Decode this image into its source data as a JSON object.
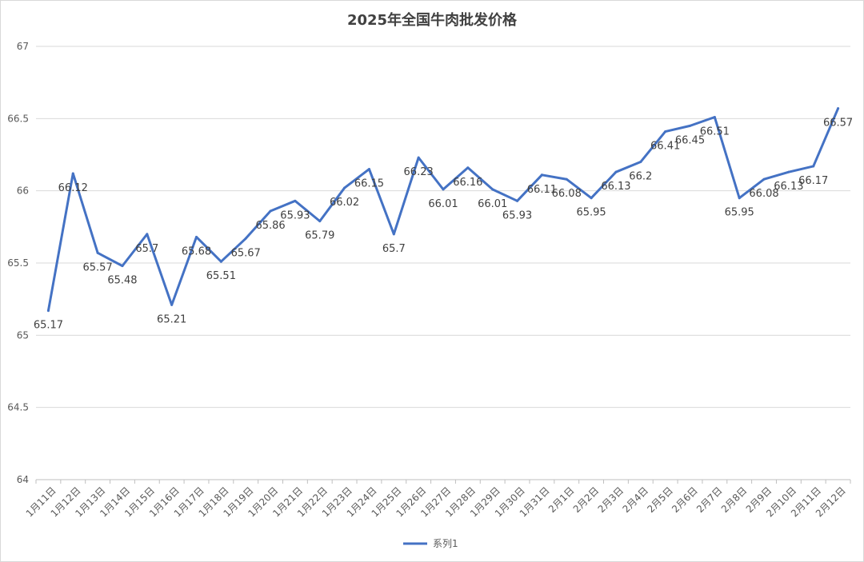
{
  "chart_data": {
    "type": "line",
    "title": "2025年全国牛肉批发价格",
    "xlabel": "",
    "ylabel": "",
    "ylim": [
      64,
      67
    ],
    "yticks": [
      64,
      64.5,
      65,
      65.5,
      66,
      66.5,
      67
    ],
    "grid": true,
    "legend_position": "bottom",
    "color": "#4472C4",
    "categories": [
      "1月11日",
      "1月12日",
      "1月13日",
      "1月14日",
      "1月15日",
      "1月16日",
      "1月17日",
      "1月18日",
      "1月19日",
      "1月20日",
      "1月21日",
      "1月22日",
      "1月23日",
      "1月24日",
      "1月25日",
      "1月26日",
      "1月27日",
      "1月28日",
      "1月29日",
      "1月30日",
      "1月31日",
      "2月1日",
      "2月2日",
      "2月3日",
      "2月4日",
      "2月5日",
      "2月6日",
      "2月7日",
      "2月8日",
      "2月9日",
      "2月10日",
      "2月11日",
      "2月12日"
    ],
    "series": [
      {
        "name": "系列1",
        "values": [
          65.17,
          66.12,
          65.57,
          65.48,
          65.7,
          65.21,
          65.68,
          65.51,
          65.67,
          65.86,
          65.93,
          65.79,
          66.02,
          66.15,
          65.7,
          66.23,
          66.01,
          66.16,
          66.01,
          65.93,
          66.11,
          66.08,
          65.95,
          66.13,
          66.2,
          66.41,
          66.45,
          66.51,
          65.95,
          66.08,
          66.13,
          66.17,
          66.57
        ]
      }
    ]
  }
}
